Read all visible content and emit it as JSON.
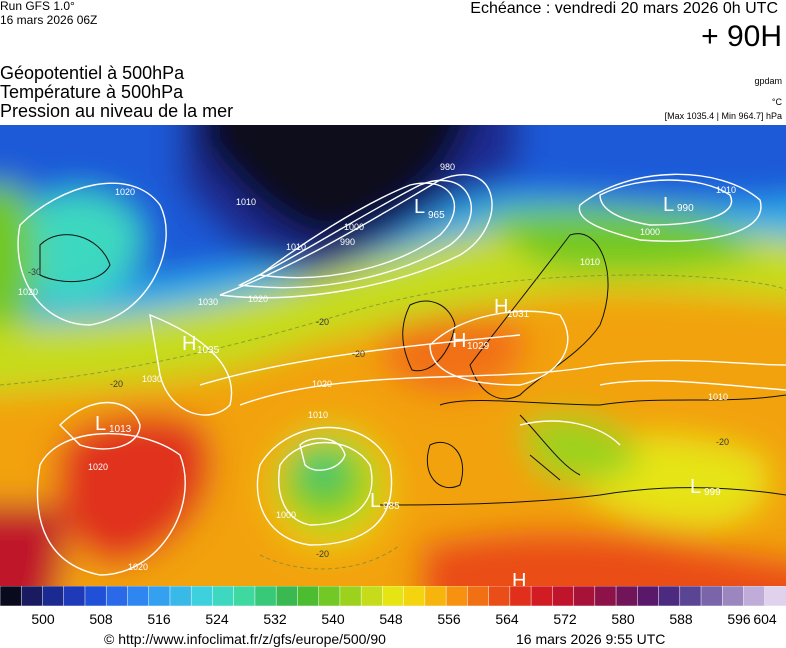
{
  "header": {
    "run": "Run GFS 1.0°",
    "run_date": "16 mars 2026 06Z",
    "echeance": "Echéance : vendredi 20 mars 2026 0h UTC",
    "lead": "+ 90H"
  },
  "titles": [
    "Géopotentiel à 500hPa",
    "Température à 500hPa",
    "Pression au niveau de la mer"
  ],
  "units": {
    "gpdam": "gpdam",
    "celsius": "°C",
    "minmax": "[Max 1035.4 | Min 964.7] hPa"
  },
  "pressure_centers": [
    {
      "type": "L",
      "value": "965"
    },
    {
      "type": "L",
      "value": "990"
    },
    {
      "type": "H",
      "value": "1035"
    },
    {
      "type": "H",
      "value": "1031"
    },
    {
      "type": "H",
      "value": "1029"
    },
    {
      "type": "L",
      "value": "1013"
    },
    {
      "type": "L",
      "value": "985"
    },
    {
      "type": "L",
      "value": "999"
    },
    {
      "type": "H",
      "value": ""
    }
  ],
  "isobar_labels": [
    "1020",
    "1020",
    "1030",
    "1030",
    "1020",
    "1010",
    "1000",
    "990",
    "980",
    "1010",
    "1010",
    "1000",
    "1010",
    "1020",
    "1010",
    "1000",
    "1020",
    "1010",
    "1020"
  ],
  "temp_labels": [
    "-20",
    "-20",
    "-20",
    "-20",
    "-20",
    "-30"
  ],
  "legend": {
    "ticks": [
      "500",
      "508",
      "516",
      "524",
      "532",
      "540",
      "548",
      "556",
      "564",
      "572",
      "580",
      "588",
      "596",
      "604"
    ],
    "colors": [
      "#0a0a1e",
      "#1a1a60",
      "#1a2a90",
      "#1e3ab8",
      "#2050d8",
      "#2a6ae8",
      "#2f86f0",
      "#33a0f0",
      "#39b9e8",
      "#3ed0dc",
      "#3ed8c0",
      "#3ed8a0",
      "#38c87a",
      "#3ab852",
      "#4cbc30",
      "#72c824",
      "#9cd21e",
      "#c6dc1a",
      "#e6e412",
      "#f4d40e",
      "#f6b40c",
      "#f69210",
      "#f27014",
      "#ea4e18",
      "#e0301c",
      "#d21c24",
      "#c0142c",
      "#a61238",
      "#8c1248",
      "#721458",
      "#5a186a",
      "#4c2a80",
      "#5a4494",
      "#7a64aa",
      "#9c86c0",
      "#c0acd8",
      "#e0d2ec"
    ]
  },
  "footer": {
    "url": "© http://www.infoclimat.fr/z/gfs/europe/500/90",
    "timestamp": "16 mars 2026  9:55 UTC"
  }
}
